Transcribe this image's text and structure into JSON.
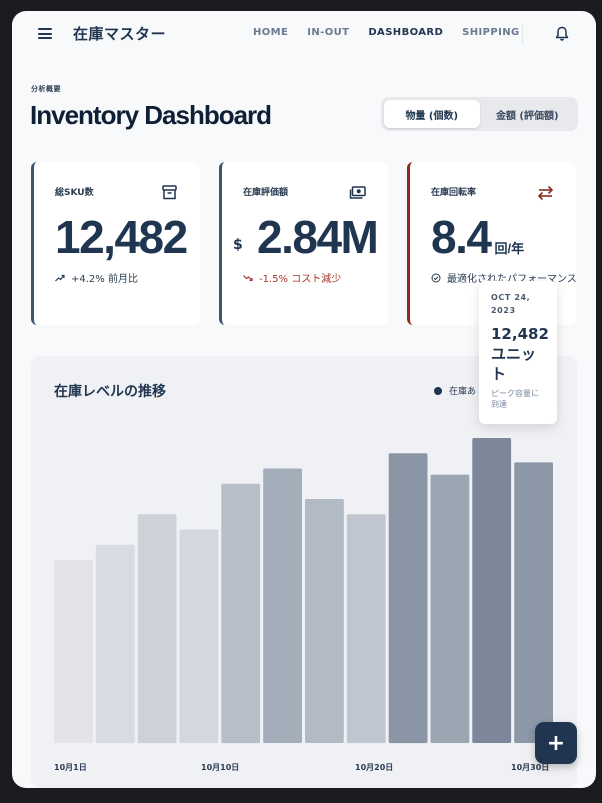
{
  "header": {
    "app_title": "在庫マスター",
    "nav": [
      {
        "label": "HOME"
      },
      {
        "label": "IN-OUT"
      },
      {
        "label": "DASHBOARD"
      },
      {
        "label": "SHIPPING"
      }
    ],
    "active_nav": "DASHBOARD"
  },
  "page": {
    "eyebrow": "分析概要",
    "title": "Inventory Dashboard",
    "toggle": [
      {
        "label": "物量 (個数)",
        "selected": true
      },
      {
        "label": "金額 (評価額)",
        "selected": false
      }
    ]
  },
  "kpis": {
    "sku": {
      "label": "総SKU数",
      "value": "12,482",
      "trend": "+4.2% 前月比",
      "icon": "archive-icon"
    },
    "valuation": {
      "label": "在庫評価額",
      "currency": "$",
      "value": "2.84M",
      "trend": "-1.5% コスト減少",
      "icon": "money-icon"
    },
    "turnover": {
      "label": "在庫回転率",
      "value": "8.4",
      "unit": "回/年",
      "trend": "最適化されたパフォーマンス",
      "icon": "swap-arrows-icon"
    }
  },
  "chart": {
    "title": "在庫レベルの推移",
    "legend": "在庫あ",
    "tooltip": {
      "date": "OCT 24, 2023",
      "value": "12,482 ユニット",
      "note": "ピーク容量に到達"
    }
  },
  "chart_data": {
    "type": "bar",
    "title": "在庫レベルの推移",
    "x_tick_labels": [
      "10月1日",
      "10月10日",
      "10月20日",
      "10月30日"
    ],
    "values": [
      60,
      65,
      75,
      70,
      85,
      90,
      80,
      75,
      95,
      88,
      100,
      92
    ],
    "ylim": [
      0,
      100
    ],
    "colors": [
      "#e2e4e8",
      "#d8dce2",
      "#cdd2d9",
      "#d4d8de",
      "#b6bec8",
      "#a4aebb",
      "#b2bac5",
      "#bfc6cf",
      "#8a96a5",
      "#9ba6b3",
      "#7c8899",
      "#8c98a8"
    ],
    "grid": false
  },
  "fab": {
    "label": "+"
  }
}
